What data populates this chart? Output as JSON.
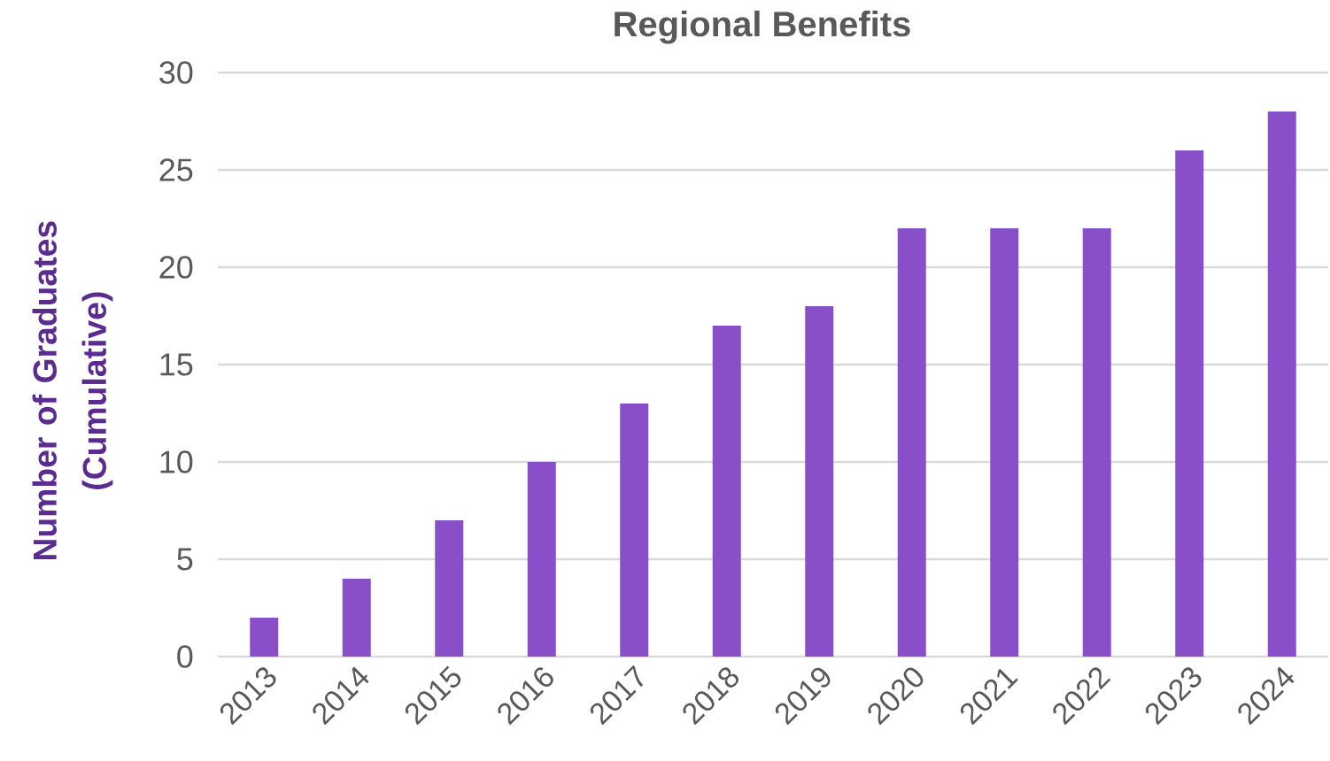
{
  "chart_data": {
    "type": "bar",
    "title": "Regional Benefits",
    "ylabel": "Number of Graduates (Cumulative)",
    "categories": [
      "2013",
      "2014",
      "2015",
      "2016",
      "2017",
      "2018",
      "2019",
      "2020",
      "2021",
      "2022",
      "2023",
      "2024"
    ],
    "values": [
      2,
      4,
      7,
      10,
      13,
      17,
      18,
      22,
      22,
      22,
      26,
      28
    ],
    "color": "#884fc9",
    "ylim": [
      0,
      30
    ],
    "yticks": [
      0,
      5,
      10,
      15,
      20,
      25,
      30
    ],
    "grid": "y"
  }
}
